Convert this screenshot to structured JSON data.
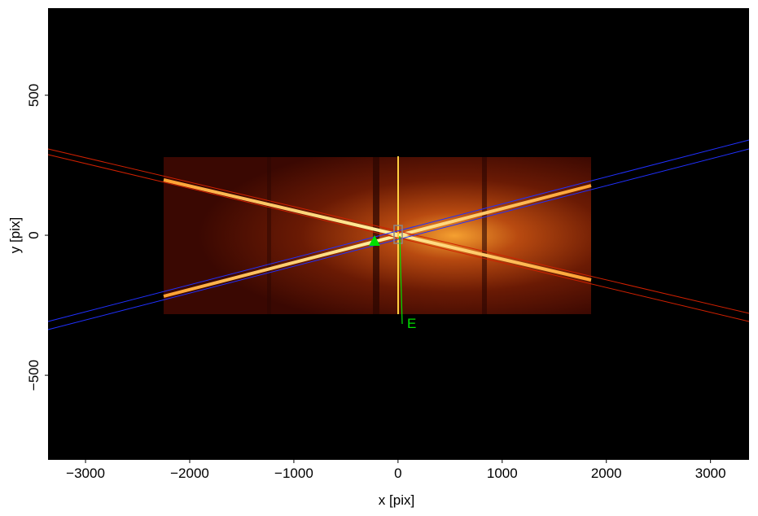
{
  "chart_data": {
    "type": "image",
    "xlabel": "x [pix]",
    "ylabel": "y [pix]",
    "xlim": [
      -3360,
      3370
    ],
    "ylim": [
      -802,
      811
    ],
    "xticks": [
      {
        "value": -3000,
        "label": "−3000"
      },
      {
        "value": -2000,
        "label": "−2000"
      },
      {
        "value": -1000,
        "label": "−1000"
      },
      0,
      1000,
      2000,
      3000
    ],
    "yticks": [
      {
        "value": -500,
        "label": "−500"
      },
      0,
      500
    ],
    "annotations": [
      {
        "text": "E"
      }
    ]
  }
}
